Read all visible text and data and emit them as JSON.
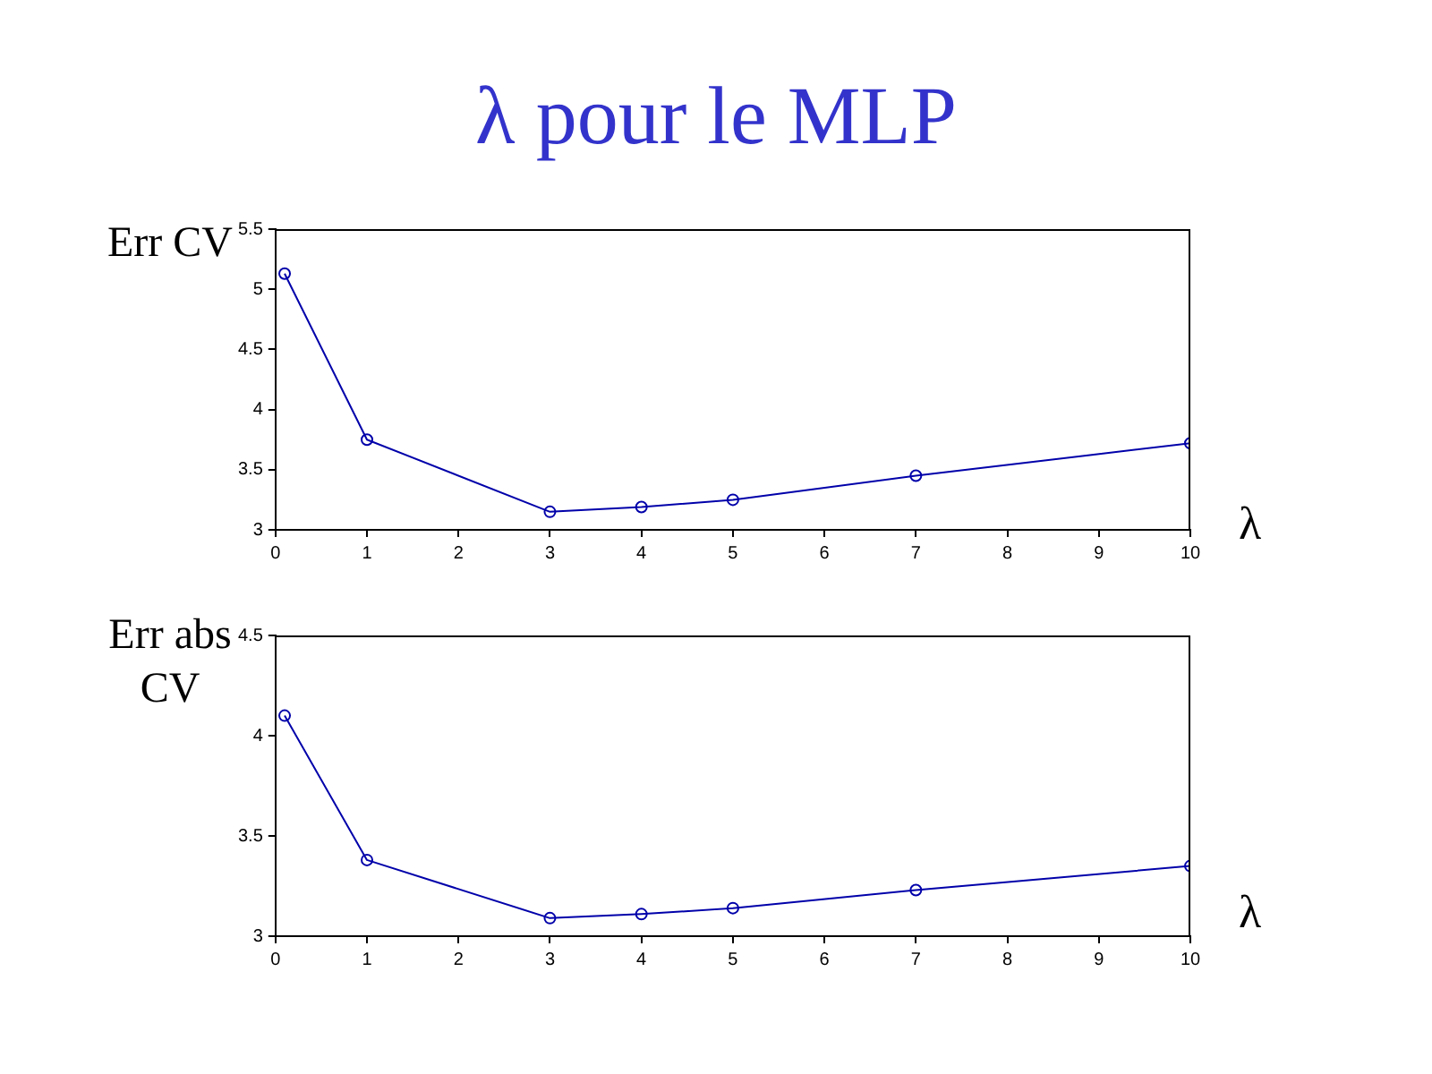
{
  "chart_data": [
    {
      "type": "line",
      "title": "λ pour le MLP",
      "ylabel": "Err CV",
      "xlabel": "λ",
      "x": [
        0.1,
        1,
        3,
        4,
        5,
        7,
        10
      ],
      "series": [
        {
          "color": "#0000aa",
          "values": [
            5.13,
            3.75,
            3.15,
            3.19,
            3.25,
            3.45,
            3.72
          ]
        }
      ],
      "xlim": [
        0,
        10
      ],
      "xticks": [
        0,
        1,
        2,
        3,
        4,
        5,
        6,
        7,
        8,
        9,
        10
      ],
      "ylim": [
        3,
        5.5
      ],
      "yticks": [
        3,
        3.5,
        4,
        4.5,
        5,
        5.5
      ],
      "grid": false,
      "marker": "circle",
      "line_style": "solid"
    },
    {
      "type": "line",
      "ylabel": "Err abs CV",
      "xlabel": "λ",
      "x": [
        0.1,
        1,
        3,
        4,
        5,
        7,
        10
      ],
      "series": [
        {
          "color": "#0000aa",
          "values": [
            4.1,
            3.38,
            3.09,
            3.11,
            3.14,
            3.23,
            3.35
          ]
        }
      ],
      "xlim": [
        0,
        10
      ],
      "xticks": [
        0,
        1,
        2,
        3,
        4,
        5,
        6,
        7,
        8,
        9,
        10
      ],
      "ylim": [
        3,
        4.5
      ],
      "yticks": [
        3,
        3.5,
        4,
        4.5
      ],
      "grid": false,
      "marker": "circle",
      "line_style": "solid"
    }
  ]
}
